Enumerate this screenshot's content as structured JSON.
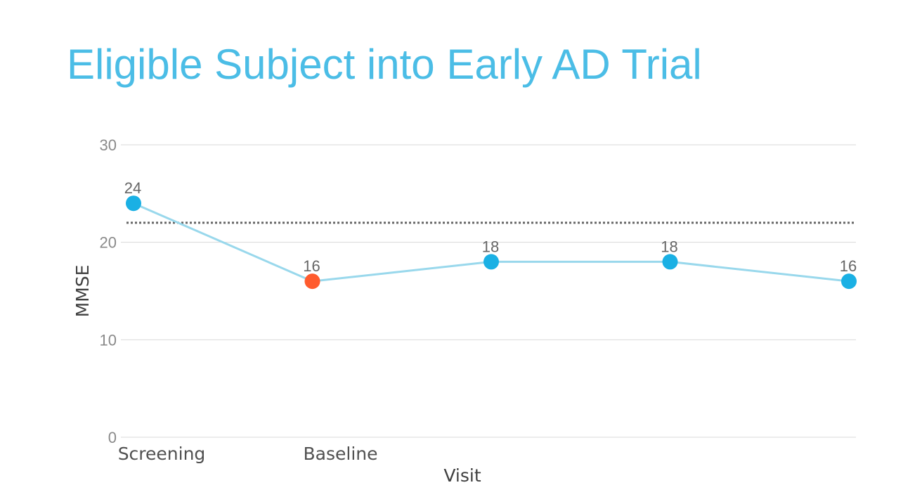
{
  "title": "Eligible Subject into Early AD Trial",
  "chart_data": {
    "type": "line",
    "title": "Eligible Subject into Early AD Trial",
    "xlabel": "Visit",
    "ylabel": "MMSE",
    "categories": [
      "Screening",
      "Baseline",
      "",
      "",
      ""
    ],
    "series": [
      {
        "values": [
          24,
          16,
          18,
          18,
          16
        ],
        "data_labels": [
          "24",
          "16",
          "18",
          "18",
          "16"
        ],
        "line_color": "#99d8ec",
        "marker_colors": [
          "#1ab0e4",
          "#ff5b2d",
          "#1ab0e4",
          "#1ab0e4",
          "#1ab0e4"
        ]
      }
    ],
    "threshold": {
      "value": 22,
      "style": "dotted",
      "color": "#666666"
    },
    "ylim": [
      0,
      30
    ],
    "yticks": [
      0,
      10,
      20,
      30
    ],
    "grid": true,
    "legend": "none"
  }
}
